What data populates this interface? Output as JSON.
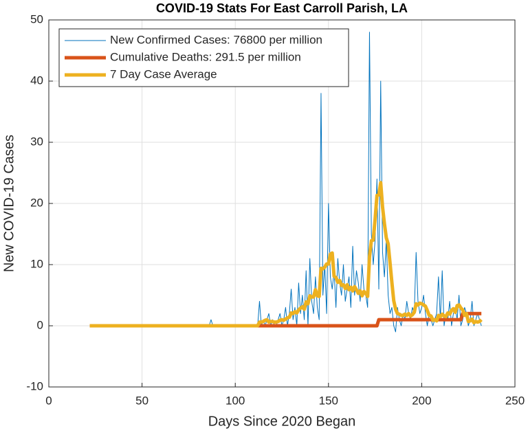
{
  "chart_data": {
    "type": "line",
    "title": "COVID-19 Stats For East Carroll Parish, LA",
    "x_label": "Days Since 2020 Began",
    "y_label": "New COVID-19 Cases",
    "xlim": [
      0,
      250
    ],
    "xticks": [
      0,
      50,
      100,
      150,
      200,
      250
    ],
    "ylim": [
      -10,
      50
    ],
    "yticks": [
      -10,
      0,
      10,
      20,
      30,
      40,
      50
    ],
    "grid": true,
    "legend": "upper-left",
    "x": [
      22,
      23,
      24,
      25,
      26,
      27,
      28,
      29,
      30,
      31,
      32,
      33,
      34,
      35,
      36,
      37,
      38,
      39,
      40,
      41,
      42,
      43,
      44,
      45,
      46,
      47,
      48,
      49,
      50,
      51,
      52,
      53,
      54,
      55,
      56,
      57,
      58,
      59,
      60,
      61,
      62,
      63,
      64,
      65,
      66,
      67,
      68,
      69,
      70,
      71,
      72,
      73,
      74,
      75,
      76,
      77,
      78,
      79,
      80,
      81,
      82,
      83,
      84,
      85,
      86,
      87,
      88,
      89,
      90,
      91,
      92,
      93,
      94,
      95,
      96,
      97,
      98,
      99,
      100,
      101,
      102,
      103,
      104,
      105,
      106,
      107,
      108,
      109,
      110,
      111,
      112,
      113,
      114,
      115,
      116,
      117,
      118,
      119,
      120,
      121,
      122,
      123,
      124,
      125,
      126,
      127,
      128,
      129,
      130,
      131,
      132,
      133,
      134,
      135,
      136,
      137,
      138,
      139,
      140,
      141,
      142,
      143,
      144,
      145,
      146,
      147,
      148,
      149,
      150,
      151,
      152,
      153,
      154,
      155,
      156,
      157,
      158,
      159,
      160,
      161,
      162,
      163,
      164,
      165,
      166,
      167,
      168,
      169,
      170,
      171,
      172,
      173,
      174,
      175,
      176,
      177,
      178,
      179,
      180,
      181,
      182,
      183,
      184,
      185,
      186,
      187,
      188,
      189,
      190,
      191,
      192,
      193,
      194,
      195,
      196,
      197,
      198,
      199,
      200,
      201,
      202,
      203,
      204,
      205,
      206,
      207,
      208,
      209,
      210,
      211,
      212,
      213,
      214,
      215,
      216,
      217,
      218,
      219,
      220,
      221,
      222,
      223,
      224,
      225,
      226,
      227,
      228,
      229,
      230,
      231,
      232
    ],
    "series": [
      {
        "name": "New Confirmed Cases: 76800 per million",
        "color": "#0072BD",
        "width": 1,
        "values": [
          0,
          0,
          0,
          0,
          0,
          0,
          0,
          0,
          0,
          0,
          0,
          0,
          0,
          0,
          0,
          0,
          0,
          0,
          0,
          0,
          0,
          0,
          0,
          0,
          0,
          0,
          0,
          0,
          0,
          0,
          0,
          0,
          0,
          0,
          0,
          0,
          0,
          0,
          0,
          0,
          0,
          0,
          0,
          0,
          0,
          0,
          0,
          0,
          0,
          0,
          0,
          0,
          0,
          0,
          0,
          0,
          0,
          0,
          0,
          0,
          0,
          0,
          0,
          0,
          0,
          1,
          0,
          0,
          0,
          0,
          0,
          0,
          0,
          0,
          0,
          0,
          0,
          0,
          0,
          0,
          0,
          0,
          0,
          0,
          0,
          0,
          0,
          0,
          0,
          0,
          0,
          4,
          0,
          1,
          0,
          1,
          2,
          0,
          1,
          0,
          0,
          1,
          2,
          0,
          1,
          3,
          0,
          2,
          6,
          1,
          3,
          0,
          7,
          2,
          5,
          1,
          9,
          0,
          11,
          4,
          2,
          8,
          3,
          1,
          38,
          5,
          10,
          2,
          20,
          8,
          6,
          9,
          3,
          11,
          7,
          5,
          10,
          4,
          6,
          8,
          3,
          13,
          5,
          9,
          7,
          4,
          10,
          6,
          5,
          3,
          48,
          15,
          10,
          14,
          24,
          6,
          40,
          12,
          8,
          14,
          5,
          2,
          3,
          0,
          -1,
          3,
          1,
          0,
          2,
          1,
          4,
          2,
          1,
          3,
          2,
          12,
          4,
          2,
          3,
          5,
          2,
          0,
          2,
          1,
          0,
          1,
          2,
          8,
          1,
          9,
          0,
          2,
          1,
          4,
          0,
          2,
          3,
          1,
          5,
          0,
          1,
          3,
          2,
          0,
          1,
          4,
          0,
          1,
          2,
          1,
          0
        ]
      },
      {
        "name": "Cumulative Deaths: 291.5 per million",
        "color": "#D95319",
        "width": 5,
        "values": [
          0,
          0,
          0,
          0,
          0,
          0,
          0,
          0,
          0,
          0,
          0,
          0,
          0,
          0,
          0,
          0,
          0,
          0,
          0,
          0,
          0,
          0,
          0,
          0,
          0,
          0,
          0,
          0,
          0,
          0,
          0,
          0,
          0,
          0,
          0,
          0,
          0,
          0,
          0,
          0,
          0,
          0,
          0,
          0,
          0,
          0,
          0,
          0,
          0,
          0,
          0,
          0,
          0,
          0,
          0,
          0,
          0,
          0,
          0,
          0,
          0,
          0,
          0,
          0,
          0,
          0,
          0,
          0,
          0,
          0,
          0,
          0,
          0,
          0,
          0,
          0,
          0,
          0,
          0,
          0,
          0,
          0,
          0,
          0,
          0,
          0,
          0,
          0,
          0,
          0,
          0,
          0,
          0,
          0,
          0,
          0,
          0,
          0,
          0,
          0,
          0,
          0,
          0,
          0,
          0,
          0,
          0,
          0,
          0,
          0,
          0,
          0,
          0,
          0,
          0,
          0,
          0,
          0,
          0,
          0,
          0,
          0,
          0,
          0,
          0,
          0,
          0,
          0,
          0,
          0,
          0,
          0,
          0,
          0,
          0,
          0,
          0,
          0,
          0,
          0,
          0,
          0,
          0,
          0,
          0,
          0,
          0,
          0,
          0,
          0,
          0,
          0,
          0,
          0,
          0,
          1,
          1,
          1,
          1,
          1,
          1,
          1,
          1,
          1,
          1,
          1,
          1,
          1,
          1,
          1,
          1,
          1,
          1,
          1,
          1,
          1,
          1,
          1,
          1,
          1,
          1,
          1,
          1,
          1,
          1,
          1,
          1,
          1,
          1,
          1,
          1,
          1,
          1,
          1,
          1,
          1,
          1,
          1,
          1,
          1,
          2,
          2,
          2,
          2,
          2,
          2,
          2,
          2,
          2,
          2,
          2
        ]
      },
      {
        "name": "7 Day Case Average",
        "color": "#EDB120",
        "width": 5,
        "values": [
          0,
          0,
          0,
          0,
          0,
          0,
          0,
          0,
          0,
          0,
          0,
          0,
          0,
          0,
          0,
          0,
          0,
          0,
          0,
          0,
          0,
          0,
          0,
          0,
          0,
          0,
          0,
          0,
          0,
          0,
          0,
          0,
          0,
          0,
          0,
          0,
          0,
          0,
          0,
          0,
          0,
          0,
          0,
          0,
          0,
          0,
          0,
          0,
          0,
          0,
          0,
          0,
          0,
          0,
          0,
          0,
          0,
          0,
          0,
          0,
          0,
          0,
          0,
          0,
          0,
          0,
          0,
          0,
          0,
          0,
          0,
          0,
          0,
          0,
          0,
          0,
          0,
          0,
          0,
          0,
          0,
          0,
          0,
          0,
          0,
          0,
          0,
          0,
          0,
          0,
          0,
          0.6,
          0.6,
          0.7,
          0.9,
          1,
          0.6,
          0.7,
          0.7,
          0.6,
          0.6,
          0.7,
          0.9,
          1,
          0.9,
          1.1,
          1.3,
          1.4,
          2.1,
          2,
          2.3,
          2.1,
          2.6,
          2.9,
          3.1,
          2.7,
          3.9,
          3.6,
          4.9,
          4.7,
          4.7,
          5.9,
          4.9,
          4.8,
          9.4,
          9.3,
          9.6,
          10.1,
          10.1,
          11.7,
          11.9,
          8.1,
          7.9,
          7.1,
          7.4,
          6.6,
          6.7,
          6.1,
          6.7,
          5.9,
          6.3,
          5.7,
          6.4,
          5.9,
          5.3,
          5.7,
          4.9,
          5.6,
          5.3,
          4.8,
          11.3,
          13.9,
          14,
          17.4,
          21.3,
          21.4,
          23.4,
          19.4,
          16.7,
          14.4,
          13.4,
          10.3,
          7.1,
          4.1,
          2.7,
          2,
          1.9,
          1.7,
          1.7,
          1.9,
          1.7,
          2,
          1.6,
          1.8,
          2.2,
          3.6,
          3.4,
          3.7,
          3.6,
          3.4,
          3.2,
          2.5,
          1.7,
          1.6,
          0.9,
          1,
          0.8,
          1.7,
          1.5,
          1.9,
          1.6,
          1.5,
          2.1,
          1.9,
          2.5,
          2.8,
          2.2,
          3.3,
          3.4,
          2.9,
          2.6,
          1.7,
          2,
          0.7,
          0.8,
          1.1,
          0.5,
          0.7,
          0.6,
          0.7,
          1
        ]
      }
    ]
  }
}
